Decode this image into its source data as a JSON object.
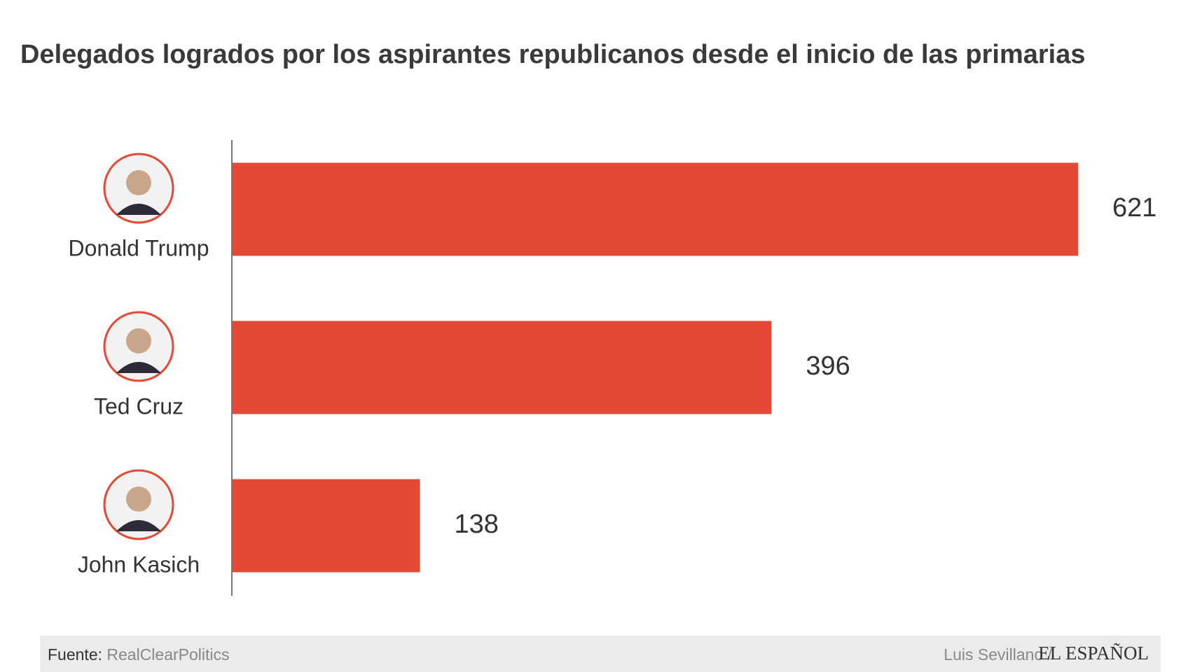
{
  "chart_data": {
    "type": "bar",
    "orientation": "horizontal",
    "title": "Delegados logrados por los aspirantes republicanos desde el inicio de las primarias",
    "categories": [
      "Donald Trump",
      "Ted Cruz",
      "John Kasich"
    ],
    "values": [
      621,
      396,
      138
    ],
    "color": "#e34935",
    "source_label": "Fuente:",
    "source": "RealClearPolitics",
    "credit": "Luis Sevillano /",
    "brand": "EL ESPAÑOL"
  }
}
